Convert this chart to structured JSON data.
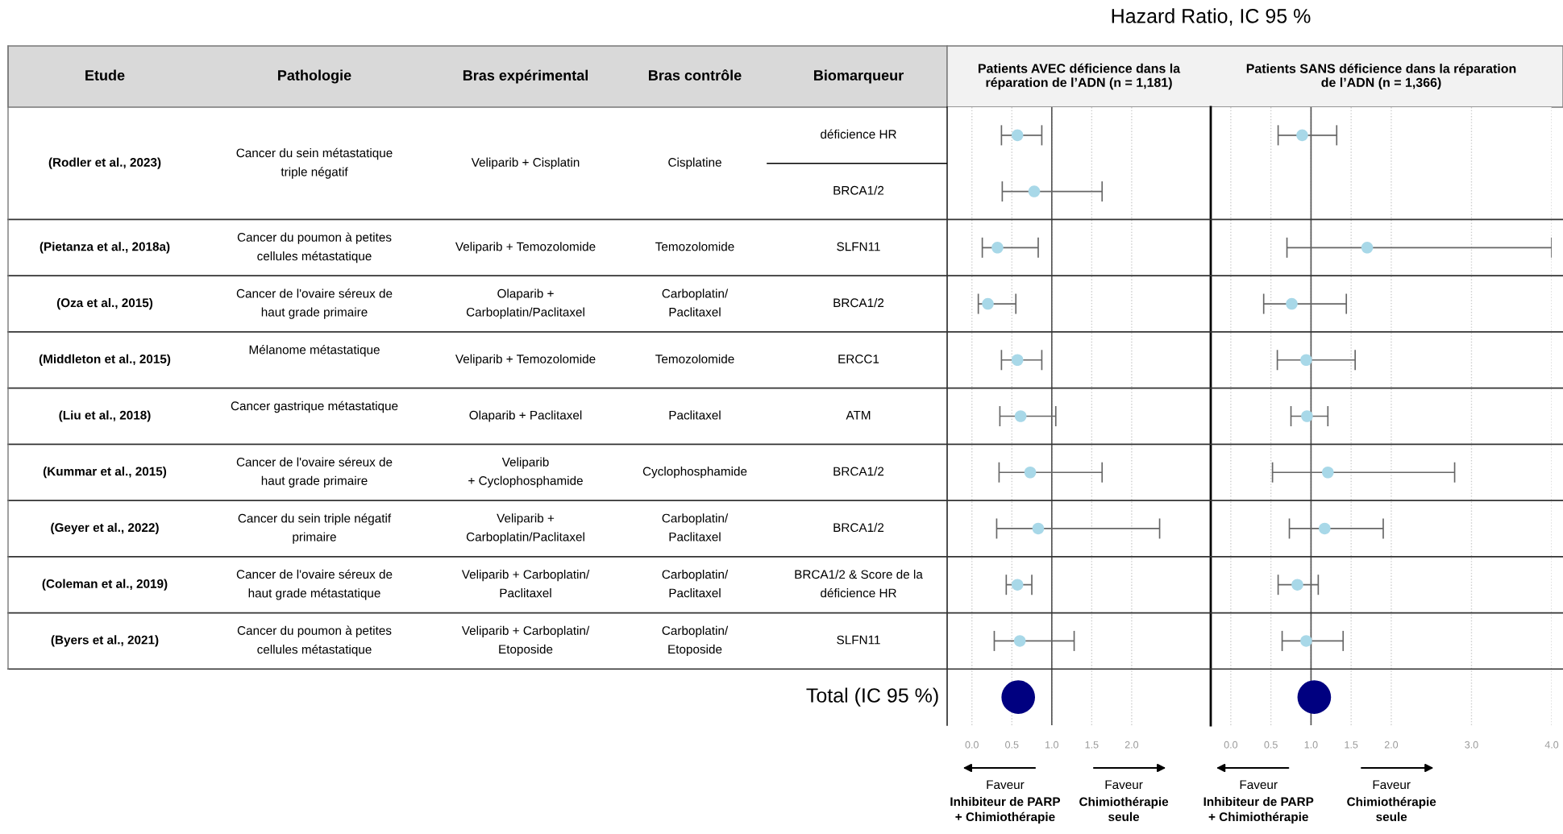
{
  "chart_data": [
    {
      "type": "other",
      "categories": [
        "Etude",
        "Pathologie",
        "Bras expérimental",
        "Bras contrôle",
        "Biomarqueur"
      ],
      "cell_labels": [
        [
          "(Rodler et al., 2023)",
          "Cancer du sein métastatique\ntriple négatif",
          "Veliparib + Cisplatin",
          "Cisplatine",
          [
            "déficience HR",
            "BRCA1/2"
          ]
        ],
        [
          "(Pietanza et al., 2018a)",
          "Cancer du poumon à petites\ncellules métastatique",
          "Veliparib + Temozolomide",
          "Temozolomide",
          "SLFN11"
        ],
        [
          "(Oza et al., 2015)",
          "Cancer de l'ovaire séreux de\nhaut grade primaire",
          "Olaparib +\nCarboplatin/Paclitaxel",
          "Carboplatin/\nPaclitaxel",
          "BRCA1/2"
        ],
        [
          "(Middleton et al., 2015)",
          "Mélanome métastatique\n ",
          "Veliparib + Temozolomide",
          "Temozolomide",
          "ERCC1"
        ],
        [
          "(Liu et al., 2018)",
          "Cancer gastrique métastatique\n ",
          "Olaparib + Paclitaxel",
          "Paclitaxel",
          "ATM"
        ],
        [
          "(Kummar et al., 2015)",
          "Cancer de l'ovaire séreux de\nhaut grade primaire",
          "Veliparib\n+ Cyclophosphamide",
          "Cyclophosphamide",
          "BRCA1/2"
        ],
        [
          "(Geyer et al., 2022)",
          "Cancer du sein triple négatif\nprimaire",
          "Veliparib +\nCarboplatin/Paclitaxel",
          "Carboplatin/\nPaclitaxel",
          "BRCA1/2"
        ],
        [
          "(Coleman et al., 2019)",
          "Cancer de l'ovaire séreux de\nhaut grade métastatique",
          "Veliparib + Carboplatin/\nPaclitaxel",
          "Carboplatin/\nPaclitaxel",
          "BRCA1/2 & Score de la\ndéficience HR"
        ],
        [
          "(Byers et al., 2021)",
          "Cancer du poumon à petites\ncellules métastatique",
          "Veliparib + Carboplatin/\nEtoposide",
          "Carboplatin/\nEtoposide",
          "SLFN11"
        ]
      ]
    },
    {
      "type": "scatter",
      "orientation": "horizontal",
      "title": "Hazard Ratio, IC 95 %",
      "subtitle": "Patients AVEC déficience dans la\nréparation de l’ADN (n = 1,181)",
      "categories": [
        null,
        null,
        null,
        null,
        null,
        null,
        null,
        null,
        null,
        null,
        null
      ],
      "xlim": [
        -0.31,
        2.99
      ],
      "xticks": [
        {
          "value": 0,
          "label": "0.0"
        },
        {
          "value": 0.5,
          "label": "0.5"
        },
        {
          "value": 1,
          "label": "1.0"
        },
        {
          "value": 1.5,
          "label": "1.5"
        },
        {
          "value": 2,
          "label": "2.0"
        }
      ],
      "tick_labels": "x",
      "grid": "x",
      "marker": "circle",
      "ref_lines": [
        {
          "axis": "x",
          "value": 1,
          "color": "#555555"
        }
      ],
      "annotations": [
        "Faveur\nInhibiteur de PARP\n+ Chimiothérapie",
        "Faveur\nChimiothérapie\nseule"
      ],
      "series": [
        {
          "color": "#a8d8e8",
          "values": [
            0.57,
            0.78,
            0.32,
            0.2,
            0.57,
            0.61,
            0.73,
            0.83,
            0.57,
            0.6,
            null
          ],
          "errors": [
            [
              0.37,
              0.875
            ],
            [
              0.38,
              1.63
            ],
            [
              0.13,
              0.83
            ],
            [
              0.08,
              0.55
            ],
            [
              0.37,
              0.875
            ],
            [
              0.35,
              1.05
            ],
            [
              0.34,
              1.63
            ],
            [
              0.31,
              2.35
            ],
            [
              0.43,
              0.75
            ],
            [
              0.28,
              1.28
            ],
            null
          ]
        },
        {
          "name": "Total (IC 95 %)",
          "color": "#000080",
          "values": [
            null,
            null,
            null,
            null,
            null,
            null,
            null,
            null,
            null,
            null,
            0.58
          ]
        }
      ]
    },
    {
      "type": "scatter",
      "orientation": "horizontal",
      "subtitle": "Patients SANS déficience dans la réparation\nde l’ADN (n = 1,366)",
      "categories": [
        null,
        null,
        null,
        null,
        null,
        null,
        null,
        null,
        null,
        null,
        null
      ],
      "xlim": [
        -0.25,
        4.0
      ],
      "xticks": [
        {
          "value": 0,
          "label": "0.0"
        },
        {
          "value": 0.5,
          "label": "0.5"
        },
        {
          "value": 1,
          "label": "1.0"
        },
        {
          "value": 1.5,
          "label": "1.5"
        },
        {
          "value": 2,
          "label": "2.0"
        },
        {
          "value": 3,
          "label": "3.0"
        },
        {
          "value": 4,
          "label": "4.0"
        }
      ],
      "tick_labels": "x",
      "grid": "x",
      "marker": "circle",
      "ref_lines": [
        {
          "axis": "x",
          "value": 1,
          "color": "#555555"
        }
      ],
      "annotations": [
        "Faveur\nInhibiteur de PARP\n+ Chimiothérapie",
        "Faveur\nChimiothérapie\nseule"
      ],
      "series": [
        {
          "color": "#a8d8e8",
          "values": [
            0.89,
            null,
            1.7,
            0.76,
            0.94,
            0.95,
            1.21,
            1.17,
            0.83,
            0.94,
            null
          ],
          "errors": [
            [
              0.59,
              1.32
            ],
            null,
            [
              0.7,
              4.0
            ],
            [
              0.41,
              1.44
            ],
            [
              0.58,
              1.55
            ],
            [
              0.75,
              1.21
            ],
            [
              0.52,
              2.79
            ],
            [
              0.73,
              1.9
            ],
            [
              0.59,
              1.09
            ],
            [
              0.64,
              1.4
            ],
            null
          ]
        },
        {
          "color": "#000080",
          "values": [
            null,
            null,
            null,
            null,
            null,
            null,
            null,
            null,
            null,
            null,
            1.04
          ]
        }
      ]
    }
  ]
}
